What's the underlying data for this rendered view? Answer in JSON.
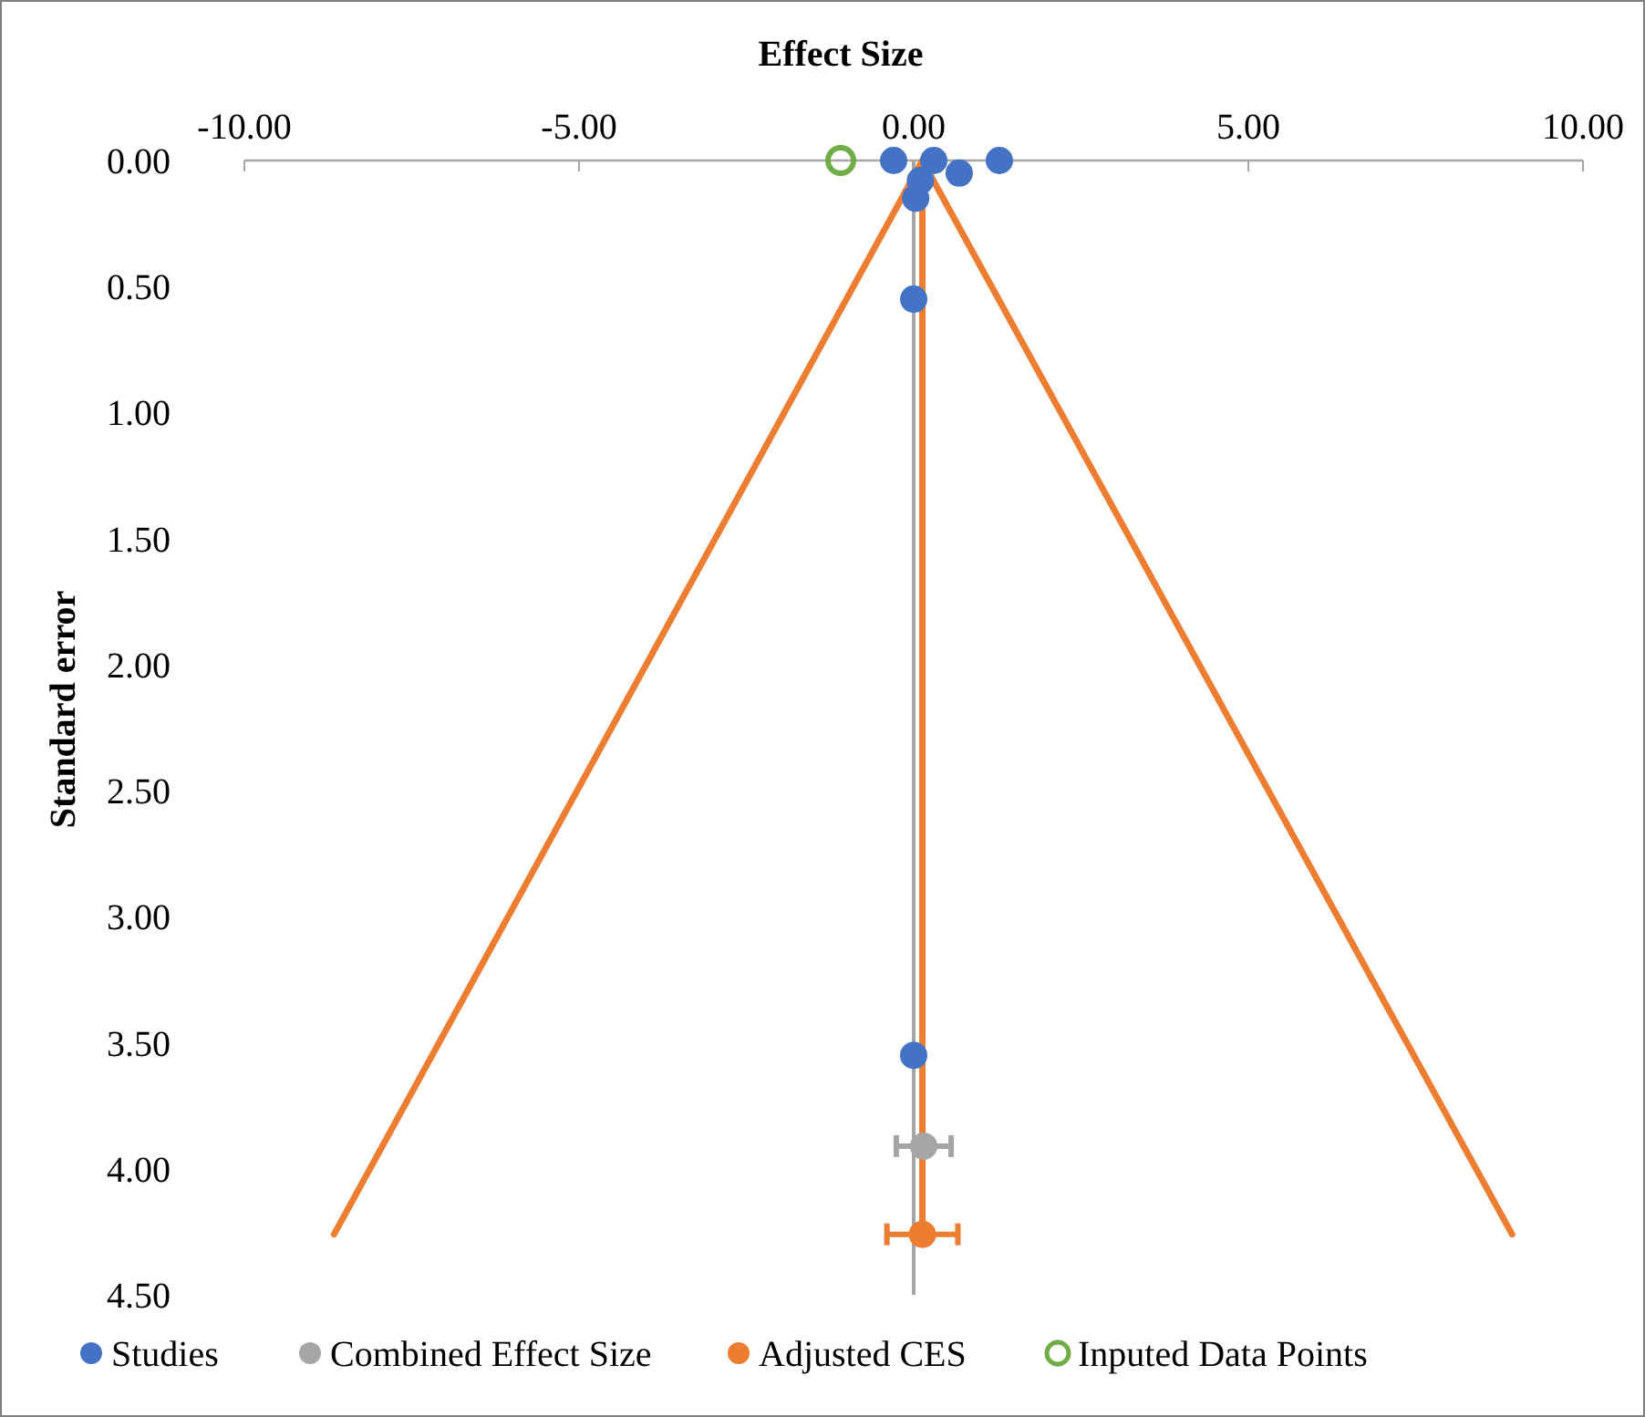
{
  "chart_data": {
    "type": "scatter",
    "xlabel": "Effect Size",
    "ylabel": "Standard error",
    "xlim": [
      -10,
      10
    ],
    "xticks": [
      {
        "value": -10,
        "label": "-10.00"
      },
      {
        "value": -5,
        "label": "-5.00"
      },
      {
        "value": 0,
        "label": "0.00"
      },
      {
        "value": 5,
        "label": "5.00"
      },
      {
        "value": 10,
        "label": "10.00"
      }
    ],
    "ylim": [
      4.5,
      0
    ],
    "yticks": [
      {
        "value": 0,
        "label": "0.00"
      },
      {
        "value": 0.5,
        "label": "0.50"
      },
      {
        "value": 1,
        "label": "1.00"
      },
      {
        "value": 1.5,
        "label": "1.50"
      },
      {
        "value": 2,
        "label": "2.00"
      },
      {
        "value": 2.5,
        "label": "2.50"
      },
      {
        "value": 3,
        "label": "3.00"
      },
      {
        "value": 3.5,
        "label": "3.50"
      },
      {
        "value": 4,
        "label": "4.00"
      },
      {
        "value": 4.5,
        "label": "4.50"
      }
    ],
    "grid": false,
    "legend": "bottom",
    "marker": "circle",
    "ref_lines": [
      {
        "axis": "x",
        "value": 0,
        "color": "#a5a5a5"
      }
    ],
    "series": [
      {
        "type": "line",
        "color": "#ed7d31",
        "x": [
          -8.66,
          0.13,
          8.94
        ],
        "values": [
          4.26,
          0,
          4.26
        ],
        "marker": "none"
      },
      {
        "type": "line",
        "color": "#ed7d31",
        "x": [
          0.13,
          0.13
        ],
        "values": [
          0,
          4.26
        ],
        "marker": "none"
      },
      {
        "name": "Studies",
        "color": "#4472c4",
        "x": [
          -0.3,
          0.3,
          1.28,
          0.68,
          0.1,
          0.03,
          0,
          0
        ],
        "values": [
          0,
          0,
          0,
          0.05,
          0.08,
          0.15,
          0.55,
          3.55
        ]
      },
      {
        "name": "Combined Effect Size",
        "color": "#a5a5a5",
        "x": [
          0.15
        ],
        "values": [
          3.91
        ],
        "xerrors": [
          0.41
        ]
      },
      {
        "name": "Adjusted CES",
        "color": "#ed7d31",
        "x": [
          0.13
        ],
        "values": [
          4.26
        ],
        "xerrors": [
          0.53
        ]
      },
      {
        "name": "Inputed Data Points",
        "color": "#70ad47",
        "x": [
          -1.09
        ],
        "values": [
          0
        ],
        "marker": "circle-open"
      }
    ]
  }
}
